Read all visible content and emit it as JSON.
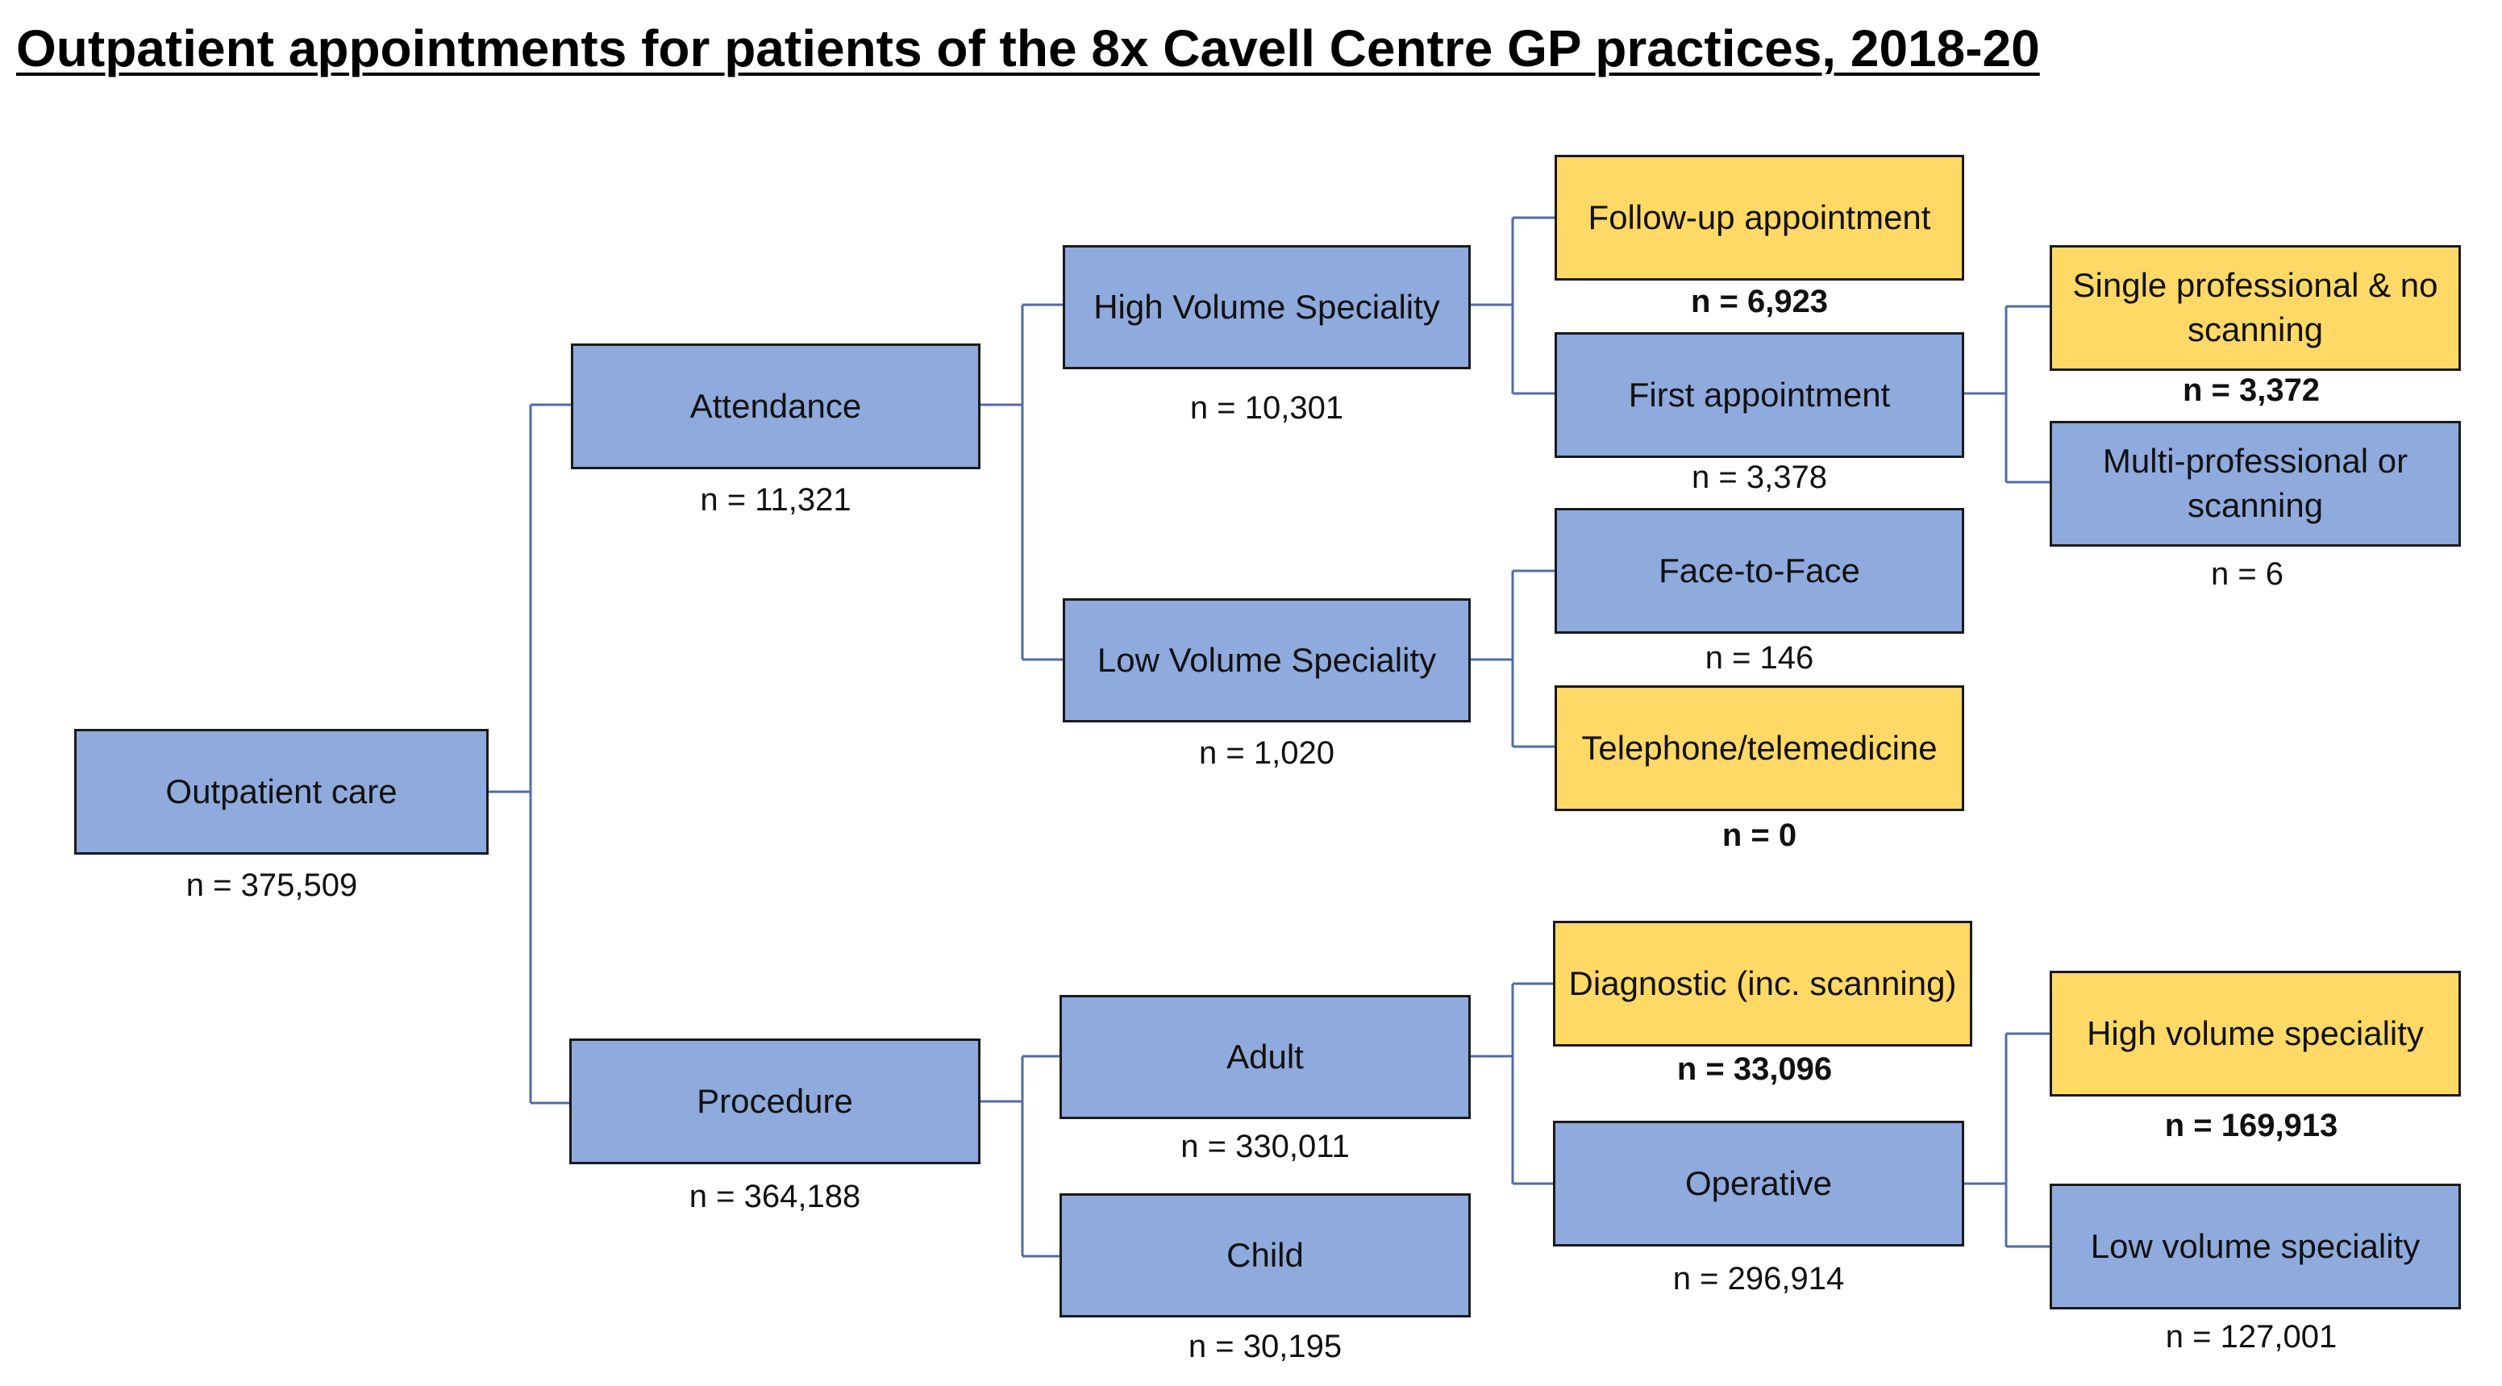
{
  "title": "Outpatient appointments for patients of the 8x Cavell Centre GP practices, 2018-20",
  "colors": {
    "blue_box": "#8faadc",
    "yellow_box": "#ffd966",
    "connector": "#4f6da6",
    "border": "#1a1a1a"
  },
  "nodes": {
    "outpatient_care": {
      "label": "Outpatient care",
      "count": "n = 375,509"
    },
    "attendance": {
      "label": "Attendance",
      "count": "n = 11,321"
    },
    "procedure": {
      "label": "Procedure",
      "count": "n = 364,188"
    },
    "high_volume_speciality": {
      "label": "High Volume Speciality",
      "count": "n = 10,301"
    },
    "low_volume_speciality": {
      "label": "Low Volume Speciality",
      "count": "n = 1,020"
    },
    "adult": {
      "label": "Adult",
      "count": "n = 330,011"
    },
    "child": {
      "label": "Child",
      "count": "n = 30,195"
    },
    "follow_up_appointment": {
      "label": "Follow-up appointment",
      "count": "n = 6,923"
    },
    "first_appointment": {
      "label": "First appointment",
      "count": "n = 3,378"
    },
    "face_to_face": {
      "label": "Face-to-Face",
      "count": "n = 146"
    },
    "telephone_telemedicine": {
      "label": "Telephone/telemedicine",
      "count": "n = 0"
    },
    "diagnostic": {
      "label": "Diagnostic (inc. scanning)",
      "count": "n = 33,096"
    },
    "operative": {
      "label": "Operative",
      "count": "n = 296,914"
    },
    "single_professional": {
      "label": "Single professional & no scanning",
      "count": "n = 3,372"
    },
    "multi_professional": {
      "label": "Multi-professional or scanning",
      "count": "n = 6"
    },
    "op_high_volume_speciality": {
      "label": "High volume speciality",
      "count": "n = 169,913"
    },
    "op_low_volume_speciality": {
      "label": "Low volume speciality",
      "count": "n = 127,001"
    }
  }
}
